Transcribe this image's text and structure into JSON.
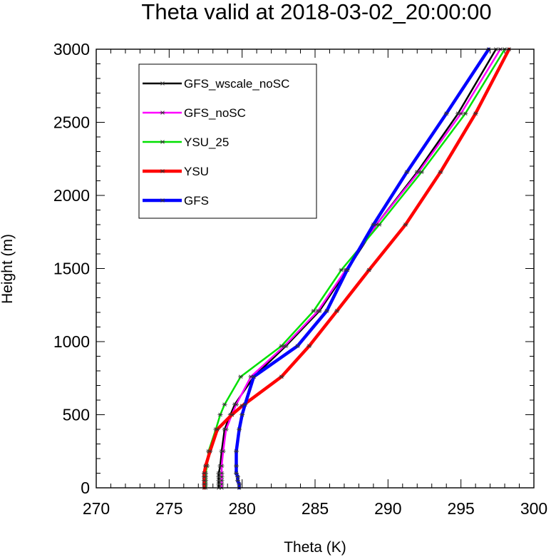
{
  "chart_data": {
    "type": "line",
    "title": "Theta valid at 2018-03-02_20:00:00",
    "xlabel": "Theta (K)",
    "ylabel": "Height (m)",
    "xlim": [
      270,
      300
    ],
    "ylim": [
      0,
      3000
    ],
    "xticks": [
      "270",
      "275",
      "280",
      "285",
      "290",
      "295",
      "300"
    ],
    "yticks": [
      "0",
      "500",
      "1000",
      "1500",
      "2000",
      "2500",
      "3000"
    ],
    "legend_position": "top-left",
    "marker": "asterisk",
    "series": [
      {
        "name": "GFS_wscale_noSC",
        "color": "#000000",
        "line_weight": "thin",
        "x": [
          278.4,
          278.4,
          278.4,
          278.4,
          278.4,
          278.5,
          278.6,
          278.8,
          279.2,
          279.5,
          280.8,
          283,
          285.3,
          287.2,
          289.2,
          292,
          294.8,
          297.4
        ],
        "y": [
          0,
          25,
          50,
          75,
          100,
          150,
          250,
          400,
          500,
          570,
          760,
          970,
          1210,
          1490,
          1800,
          2160,
          2560,
          3000
        ]
      },
      {
        "name": "GFS_noSC",
        "color": "#ff00ff",
        "line_weight": "thin",
        "x": [
          278.6,
          278.6,
          278.6,
          278.6,
          278.6,
          278.6,
          278.7,
          278.9,
          279.3,
          279.6,
          280.6,
          282.9,
          285.2,
          287.1,
          289.2,
          292.1,
          295,
          297.7
        ],
        "y": [
          0,
          25,
          50,
          75,
          100,
          150,
          250,
          400,
          500,
          570,
          760,
          970,
          1210,
          1490,
          1800,
          2160,
          2560,
          3000
        ]
      },
      {
        "name": "YSU_25",
        "color": "#00e000",
        "line_weight": "thin",
        "x": [
          277.5,
          277.5,
          277.5,
          277.5,
          277.5,
          277.6,
          277.7,
          278.2,
          278.5,
          278.8,
          279.9,
          282.7,
          284.9,
          286.8,
          289.4,
          292.3,
          295.3,
          298
        ],
        "y": [
          0,
          25,
          50,
          75,
          100,
          150,
          250,
          400,
          500,
          570,
          760,
          970,
          1210,
          1490,
          1800,
          2160,
          2560,
          3000
        ]
      },
      {
        "name": "YSU",
        "color": "#ff0000",
        "line_weight": "thick",
        "x": [
          277.4,
          277.4,
          277.4,
          277.4,
          277.4,
          277.5,
          277.8,
          278.3,
          279.3,
          280,
          282.7,
          284.6,
          286.5,
          288.7,
          291.2,
          293.6,
          296,
          298.3
        ],
        "y": [
          0,
          25,
          50,
          75,
          100,
          150,
          250,
          400,
          500,
          560,
          760,
          970,
          1210,
          1490,
          1800,
          2160,
          2560,
          3000
        ]
      },
      {
        "name": "GFS",
        "color": "#0000ff",
        "line_weight": "thick",
        "x": [
          279.8,
          279.8,
          279.7,
          279.7,
          279.6,
          279.6,
          279.6,
          279.8,
          280,
          280.2,
          280.8,
          283.8,
          285.8,
          287.2,
          289,
          291.3,
          294,
          296.9
        ],
        "y": [
          0,
          25,
          50,
          75,
          100,
          150,
          250,
          400,
          500,
          570,
          760,
          970,
          1210,
          1490,
          1800,
          2160,
          2560,
          3000
        ]
      }
    ]
  }
}
